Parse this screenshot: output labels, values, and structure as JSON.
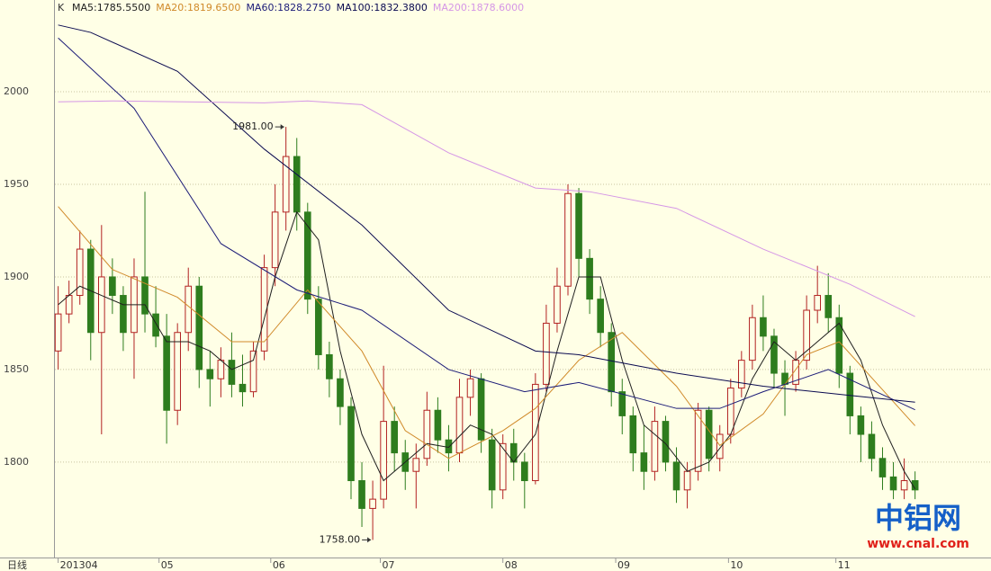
{
  "chart_data": {
    "type": "candlestick",
    "header_prefix": "K",
    "axis_name": "日线",
    "logo": {
      "title": "中铝网",
      "url": "www.cnal.com"
    },
    "ylim": [
      1748.5,
      2049.5
    ],
    "yticks": [
      1800,
      1850,
      1900,
      1950,
      2000
    ],
    "grid": true,
    "xlim": [
      -0.3,
      86
    ],
    "xticks": [
      {
        "value": 0,
        "label": "201304"
      },
      {
        "value": 9.3,
        "label": "05"
      },
      {
        "value": 19.6,
        "label": "06"
      },
      {
        "value": 29.7,
        "label": "07"
      },
      {
        "value": 41,
        "label": "08"
      },
      {
        "value": 51.4,
        "label": "09"
      },
      {
        "value": 61.8,
        "label": "10"
      },
      {
        "value": 71.7,
        "label": "11"
      }
    ],
    "up_color": "#b22222",
    "down_color": "#2e7d1e",
    "candles": [
      [
        1860,
        1895,
        1850,
        1880
      ],
      [
        1880,
        1898,
        1875,
        1890
      ],
      [
        1890,
        1925,
        1885,
        1915
      ],
      [
        1915,
        1920,
        1855,
        1870
      ],
      [
        1870,
        1928,
        1815,
        1900
      ],
      [
        1900,
        1910,
        1880,
        1890
      ],
      [
        1890,
        1895,
        1860,
        1870
      ],
      [
        1870,
        1910,
        1845,
        1900
      ],
      [
        1900,
        1946,
        1870,
        1880
      ],
      [
        1880,
        1895,
        1862,
        1868
      ],
      [
        1868,
        1880,
        1810,
        1828
      ],
      [
        1828,
        1875,
        1820,
        1870
      ],
      [
        1870,
        1905,
        1860,
        1895
      ],
      [
        1895,
        1900,
        1840,
        1850
      ],
      [
        1850,
        1860,
        1830,
        1845
      ],
      [
        1845,
        1862,
        1835,
        1855
      ],
      [
        1855,
        1870,
        1835,
        1842
      ],
      [
        1842,
        1858,
        1830,
        1838
      ],
      [
        1838,
        1865,
        1835,
        1860
      ],
      [
        1860,
        1912,
        1855,
        1905
      ],
      [
        1905,
        1950,
        1895,
        1935
      ],
      [
        1935,
        1981,
        1925,
        1965
      ],
      [
        1965,
        1975,
        1925,
        1935
      ],
      [
        1935,
        1940,
        1880,
        1888
      ],
      [
        1888,
        1895,
        1850,
        1858
      ],
      [
        1858,
        1865,
        1835,
        1845
      ],
      [
        1845,
        1850,
        1820,
        1830
      ],
      [
        1830,
        1835,
        1780,
        1790
      ],
      [
        1790,
        1800,
        1765,
        1775
      ],
      [
        1775,
        1790,
        1758,
        1780
      ],
      [
        1780,
        1852,
        1775,
        1822
      ],
      [
        1822,
        1830,
        1795,
        1805
      ],
      [
        1805,
        1812,
        1785,
        1795
      ],
      [
        1795,
        1810,
        1775,
        1802
      ],
      [
        1802,
        1838,
        1798,
        1828
      ],
      [
        1828,
        1835,
        1805,
        1812
      ],
      [
        1812,
        1820,
        1795,
        1805
      ],
      [
        1805,
        1845,
        1800,
        1835
      ],
      [
        1835,
        1850,
        1825,
        1845
      ],
      [
        1845,
        1848,
        1805,
        1812
      ],
      [
        1812,
        1818,
        1775,
        1785
      ],
      [
        1785,
        1815,
        1780,
        1810
      ],
      [
        1810,
        1818,
        1790,
        1800
      ],
      [
        1800,
        1805,
        1775,
        1790
      ],
      [
        1790,
        1848,
        1788,
        1842
      ],
      [
        1842,
        1885,
        1838,
        1875
      ],
      [
        1875,
        1905,
        1870,
        1895
      ],
      [
        1895,
        1950,
        1890,
        1945
      ],
      [
        1945,
        1948,
        1900,
        1910
      ],
      [
        1910,
        1915,
        1880,
        1888
      ],
      [
        1888,
        1895,
        1862,
        1870
      ],
      [
        1870,
        1875,
        1830,
        1838
      ],
      [
        1838,
        1845,
        1815,
        1825
      ],
      [
        1825,
        1830,
        1795,
        1805
      ],
      [
        1805,
        1820,
        1785,
        1795
      ],
      [
        1795,
        1830,
        1790,
        1822
      ],
      [
        1822,
        1825,
        1795,
        1800
      ],
      [
        1800,
        1808,
        1778,
        1785
      ],
      [
        1785,
        1800,
        1775,
        1795
      ],
      [
        1795,
        1832,
        1790,
        1828
      ],
      [
        1828,
        1830,
        1795,
        1802
      ],
      [
        1802,
        1820,
        1795,
        1815
      ],
      [
        1815,
        1845,
        1810,
        1840
      ],
      [
        1840,
        1860,
        1835,
        1855
      ],
      [
        1855,
        1885,
        1850,
        1878
      ],
      [
        1878,
        1890,
        1860,
        1868
      ],
      [
        1868,
        1872,
        1840,
        1848
      ],
      [
        1848,
        1855,
        1825,
        1842
      ],
      [
        1842,
        1860,
        1838,
        1855
      ],
      [
        1855,
        1890,
        1850,
        1882
      ],
      [
        1882,
        1906,
        1875,
        1890
      ],
      [
        1890,
        1902,
        1870,
        1878
      ],
      [
        1878,
        1885,
        1840,
        1848
      ],
      [
        1848,
        1852,
        1815,
        1825
      ],
      [
        1825,
        1830,
        1800,
        1815
      ],
      [
        1815,
        1822,
        1795,
        1802
      ],
      [
        1802,
        1808,
        1785,
        1792
      ],
      [
        1792,
        1800,
        1780,
        1785
      ],
      [
        1785,
        1802,
        1780,
        1790
      ],
      [
        1790,
        1795,
        1780,
        1785
      ]
    ],
    "series": [
      {
        "name": "MA5:1785.5500",
        "color": "#202020",
        "x": [
          0,
          2,
          4,
          6,
          8,
          10,
          12,
          14,
          16,
          18,
          20,
          22,
          24,
          26,
          28,
          30,
          32,
          34,
          36,
          38,
          40,
          42,
          44,
          46,
          48,
          50,
          52,
          54,
          56,
          58,
          60,
          62,
          64,
          66,
          68,
          70,
          72,
          74,
          76,
          78,
          79
        ],
        "values": [
          1885,
          1895,
          1890,
          1885,
          1885,
          1865,
          1865,
          1860,
          1850,
          1855,
          1900,
          1935,
          1920,
          1860,
          1815,
          1790,
          1800,
          1810,
          1808,
          1820,
          1815,
          1800,
          1815,
          1860,
          1900,
          1900,
          1855,
          1820,
          1810,
          1795,
          1800,
          1815,
          1845,
          1865,
          1855,
          1865,
          1875,
          1855,
          1820,
          1795,
          1785.55
        ]
      },
      {
        "name": "MA20:1819.6500",
        "color": "#d08a2a",
        "x": [
          0,
          5,
          11,
          16,
          19,
          23,
          28,
          32,
          36,
          41,
          44,
          48,
          52,
          57,
          61,
          65,
          69,
          72,
          79
        ],
        "values": [
          1938,
          1904,
          1889,
          1865,
          1865,
          1893,
          1860,
          1817,
          1802,
          1817,
          1829,
          1855,
          1870,
          1841,
          1809,
          1826,
          1858,
          1865,
          1819.65
        ]
      },
      {
        "name": "MA60:1828.2750",
        "color": "#1c1c78",
        "x": [
          0,
          7,
          15,
          22,
          28,
          36,
          43,
          48,
          57,
          61,
          65,
          71,
          79
        ],
        "values": [
          2029,
          1991,
          1918,
          1893,
          1882,
          1850,
          1838,
          1843,
          1829,
          1829,
          1838,
          1850,
          1828.275
        ]
      },
      {
        "name": "MA100:1832.3800",
        "color": "#0a0a50",
        "x": [
          0,
          3,
          11,
          19,
          28,
          36,
          44,
          48,
          57,
          65,
          73,
          79
        ],
        "values": [
          2036,
          2032,
          2011,
          1969,
          1928,
          1882,
          1860,
          1858,
          1848,
          1841,
          1836,
          1832.38
        ]
      },
      {
        "name": "MA200:1878.6000",
        "color": "#d596e6",
        "x": [
          0,
          5,
          19,
          23,
          28,
          36,
          44,
          49,
          57,
          65,
          73,
          79
        ],
        "values": [
          1994.5,
          1995,
          1994,
          1995,
          1993,
          1967,
          1948,
          1946,
          1937,
          1915,
          1896,
          1878.6
        ]
      }
    ],
    "annotations": [
      {
        "text": "1981.00",
        "x": 21,
        "y": 1981
      },
      {
        "text": "1758.00",
        "x": 29,
        "y": 1758
      }
    ]
  }
}
